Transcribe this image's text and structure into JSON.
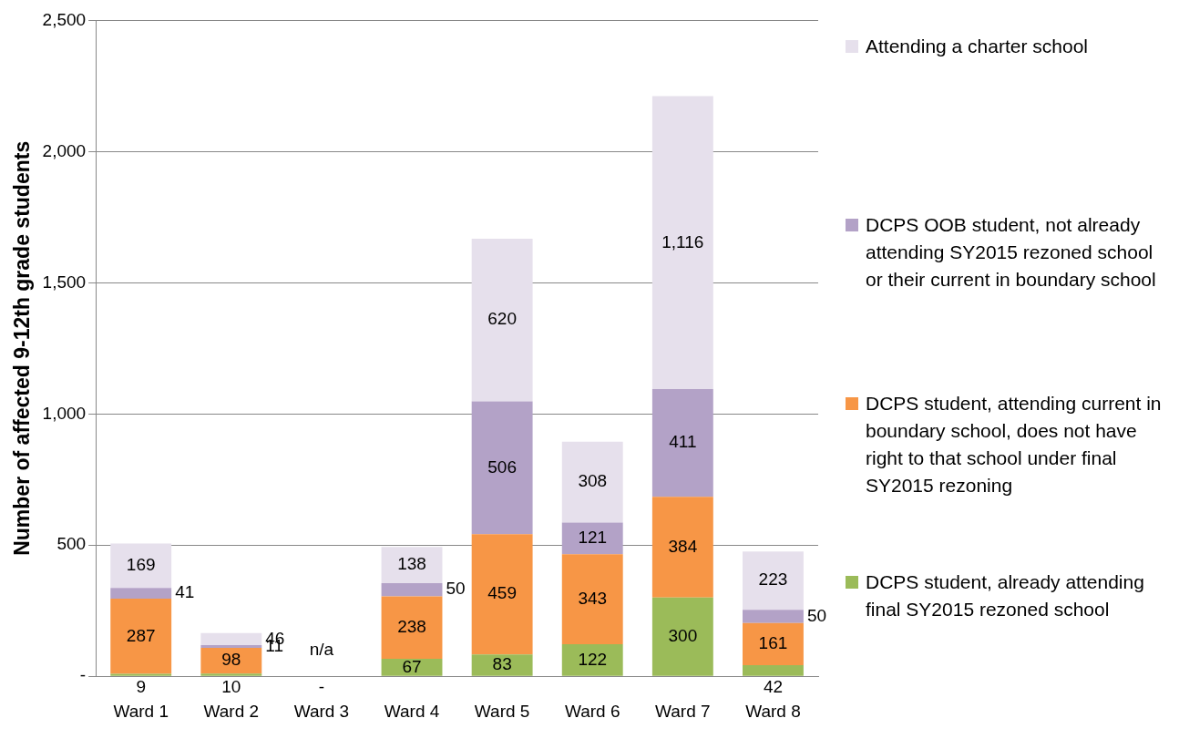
{
  "chart_data": {
    "type": "bar",
    "stacked": true,
    "ylabel": "Number of affected 9-12th grade students",
    "categories": [
      "Ward 1",
      "Ward 2",
      "Ward 3",
      "Ward 4",
      "Ward 5",
      "Ward 6",
      "Ward 7",
      "Ward 8"
    ],
    "series": [
      {
        "name": "DCPS student, already attending final SY2015 rezoned school",
        "color": "#9bbb59",
        "values": [
          9,
          10,
          0,
          67,
          83,
          122,
          300,
          42
        ],
        "value_labels": [
          "9",
          "10",
          "-",
          "67",
          "83",
          "122",
          "300",
          "42"
        ]
      },
      {
        "name": "DCPS student, attending current in boundary school, does not have right to that school under final SY2015 rezoning",
        "color": "#f79646",
        "values": [
          287,
          98,
          null,
          238,
          459,
          343,
          384,
          161
        ],
        "value_labels": [
          "287",
          "98",
          null,
          "238",
          "459",
          "343",
          "384",
          "161"
        ]
      },
      {
        "name": "DCPS OOB student, not already attending SY2015 rezoned school or their current in boundary school",
        "color": "#b3a2c7",
        "values": [
          41,
          11,
          null,
          50,
          506,
          121,
          411,
          50
        ],
        "value_labels": [
          "41",
          "11",
          null,
          "50",
          "506",
          "121",
          "411",
          "50"
        ]
      },
      {
        "name": "Attending a charter school",
        "color": "#e6e0ec",
        "values": [
          169,
          46,
          null,
          138,
          620,
          308,
          1116,
          223
        ],
        "value_labels": [
          "169",
          "46",
          null,
          "138",
          "620",
          "308",
          "1,116",
          "223"
        ]
      }
    ],
    "ylim": [
      0,
      2500
    ],
    "yticks": [
      {
        "value": 0,
        "label": "-"
      },
      {
        "value": 500,
        "label": "500"
      },
      {
        "value": 1000,
        "label": "1,000"
      },
      {
        "value": 1500,
        "label": "1,500"
      },
      {
        "value": 2000,
        "label": "2,000"
      },
      {
        "value": 2500,
        "label": "2,500"
      }
    ],
    "grid": "y",
    "legend": "right",
    "annotations": [
      "n/a"
    ]
  }
}
